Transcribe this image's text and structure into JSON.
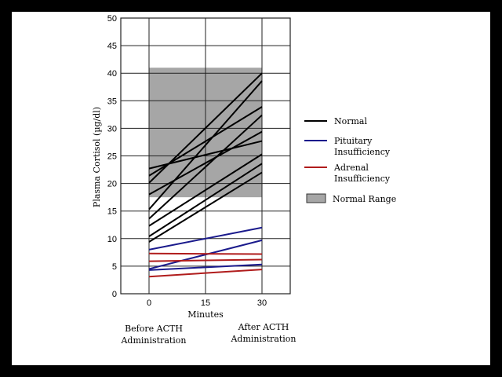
{
  "chart_data": {
    "type": "line",
    "xlabel": "Minutes",
    "ylabel": "Plasma Cortisol (µg/dl)",
    "x": [
      0,
      30
    ],
    "x_ticks": [
      "0",
      "15",
      "30"
    ],
    "xlim": [
      -7.5,
      37.5
    ],
    "ylim": [
      0,
      50
    ],
    "y_ticks": [
      "0",
      "5",
      "10",
      "15",
      "20",
      "25",
      "30",
      "35",
      "40",
      "45",
      "50"
    ],
    "grid": true,
    "legend_position": "right",
    "annotations": {
      "before": [
        "Before ACTH",
        "Administration"
      ],
      "after": [
        "After ACTH",
        "Administration"
      ]
    },
    "normal_range": {
      "label": "Normal Range",
      "x": [
        0,
        30
      ],
      "y": [
        17.5,
        41
      ],
      "color": "#a6a6a6"
    },
    "groups": [
      {
        "name": "Normal",
        "legend": [
          "Normal"
        ],
        "color": "#000000",
        "lines": [
          [
            22.7,
            27.7
          ],
          [
            21.4,
            33.9
          ],
          [
            20.1,
            40
          ],
          [
            18,
            29.4
          ],
          [
            15.3,
            38.6
          ],
          [
            13.6,
            32.4
          ],
          [
            12.3,
            25.3
          ],
          [
            10.4,
            23.6
          ],
          [
            9.4,
            22
          ]
        ]
      },
      {
        "name": "Pituitary Insufficiency",
        "legend": [
          "Pituitary",
          "Insufficiency"
        ],
        "color": "#1a1a8c",
        "lines": [
          [
            8,
            12
          ],
          [
            4.5,
            9.7
          ],
          [
            4.3,
            5.3
          ]
        ]
      },
      {
        "name": "Adrenal Insufficiency",
        "legend": [
          "Adrenal",
          "Insufficiency"
        ],
        "color": "#b01c1c",
        "lines": [
          [
            7.3,
            7.2
          ],
          [
            5.9,
            6.2
          ],
          [
            3.1,
            4.4
          ]
        ]
      }
    ]
  }
}
